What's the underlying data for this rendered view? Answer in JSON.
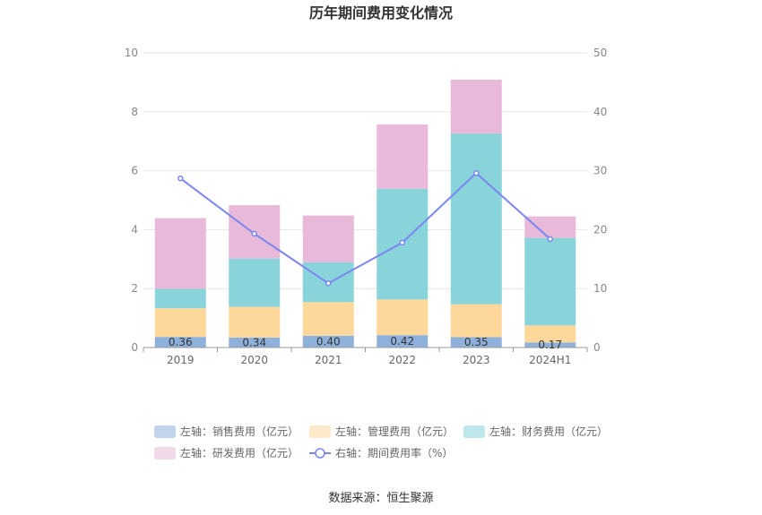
{
  "chart_data": {
    "type": "bar",
    "title": "历年期间费用变化情况",
    "categories": [
      "2019",
      "2020",
      "2021",
      "2022",
      "2023",
      "2024H1"
    ],
    "y_left": {
      "min": 0,
      "max": 10,
      "ticks": [
        "0",
        "2",
        "4",
        "6",
        "8",
        "10"
      ]
    },
    "y_right": {
      "min": 0,
      "max": 50,
      "ticks": [
        "0",
        "10",
        "20",
        "30",
        "40",
        "50"
      ]
    },
    "series": [
      {
        "name": "左轴：销售费用（亿元）",
        "type": "bar",
        "axis": "left",
        "color": "#8eb1dc",
        "values": [
          0.36,
          0.34,
          0.4,
          0.42,
          0.35,
          0.17
        ],
        "labels": [
          "0.36",
          "0.34",
          "0.40",
          "0.42",
          "0.35",
          "0.17"
        ]
      },
      {
        "name": "左轴：管理费用（亿元）",
        "type": "bar",
        "axis": "left",
        "color": "#fdd89a",
        "values": [
          0.97,
          1.04,
          1.14,
          1.21,
          1.12,
          0.58
        ]
      },
      {
        "name": "左轴：财务费用（亿元）",
        "type": "bar",
        "axis": "left",
        "color": "#88d4da",
        "values": [
          0.66,
          1.64,
          1.35,
          3.76,
          5.79,
          2.97
        ]
      },
      {
        "name": "左轴：研发费用（亿元）",
        "type": "bar",
        "axis": "left",
        "color": "#e8b9d9",
        "values": [
          2.4,
          1.81,
          1.59,
          2.18,
          1.83,
          0.73
        ]
      },
      {
        "name": "右轴：期间费用率（%）",
        "type": "line",
        "axis": "right",
        "color": "#7b86f0",
        "values": [
          28.7,
          19.3,
          10.9,
          17.8,
          29.6,
          18.4
        ]
      }
    ],
    "legend_position": "bottom",
    "grid": true
  },
  "source": "数据来源：恒生聚源"
}
